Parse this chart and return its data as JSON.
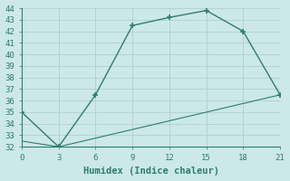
{
  "line1_x": [
    0,
    3,
    6,
    9,
    12,
    15,
    18,
    21
  ],
  "line1_y": [
    35.0,
    32.0,
    36.5,
    42.5,
    43.2,
    43.8,
    42.0,
    36.5
  ],
  "line2_x": [
    0,
    3,
    21
  ],
  "line2_y": [
    32.5,
    32.0,
    36.5
  ],
  "line_color": "#2e7d6e",
  "bg_color": "#cce8e8",
  "grid_color": "#b0d0d0",
  "xlabel": "Humidex (Indice chaleur)",
  "xlim": [
    0,
    21
  ],
  "ylim": [
    32,
    44
  ],
  "xticks": [
    0,
    3,
    6,
    9,
    12,
    15,
    18,
    21
  ],
  "yticks": [
    32,
    33,
    34,
    35,
    36,
    37,
    38,
    39,
    40,
    41,
    42,
    43,
    44
  ],
  "xlabel_fontsize": 7.5,
  "tick_fontsize": 6.5
}
